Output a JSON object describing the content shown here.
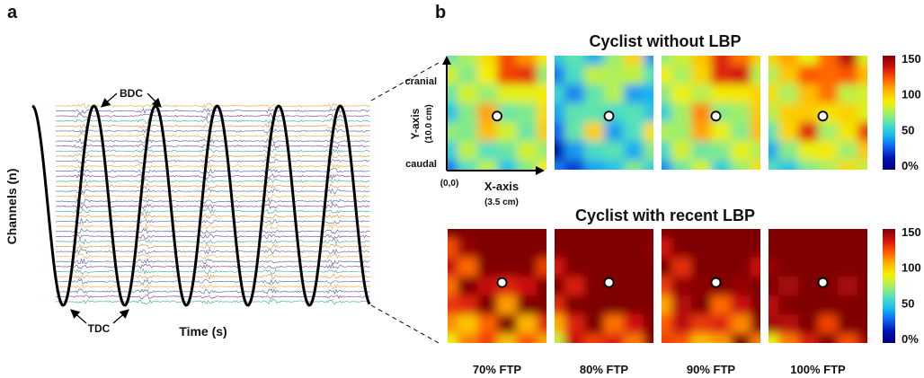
{
  "panel_a": {
    "label": "a",
    "y_axis_label": "Channels (n)",
    "x_axis_label": "Time (s)",
    "annotation_top": "BDC",
    "annotation_bottom": "TDC",
    "pedal_cycles": 5,
    "trace_colors": [
      "#f2a63a",
      "#4a5aa8",
      "#7a3e8e",
      "#3aa8a0",
      "#e08a2a",
      "#5566b0"
    ]
  },
  "panel_b": {
    "label": "b",
    "row1_title": "Cyclist without LBP",
    "row2_title": "Cyclist with recent LBP",
    "y_axis_label": "Y-axis",
    "y_axis_sub": "(10.0 cm)",
    "x_axis_label": "X-axis",
    "x_axis_sub": "(3.5 cm)",
    "top_label": "cranial",
    "bottom_label": "caudal",
    "origin_label": "(0,0)",
    "conditions": [
      "70% FTP",
      "80% FTP",
      "90% FTP",
      "100% FTP"
    ],
    "colorbar": {
      "ticks": [
        "150",
        "100",
        "50",
        "0%"
      ],
      "colors": [
        "#7f0000",
        "#d01010",
        "#ff5a00",
        "#ffb000",
        "#f4f000",
        "#a8f060",
        "#50e0c0",
        "#18b8f0",
        "#1060f0",
        "#0010b0",
        "#000080"
      ]
    },
    "heatmap_intensity": {
      "row1": [
        0.0,
        -0.25,
        0.05,
        0.1
      ],
      "row2": [
        0.55,
        0.7,
        0.65,
        0.8
      ]
    }
  }
}
